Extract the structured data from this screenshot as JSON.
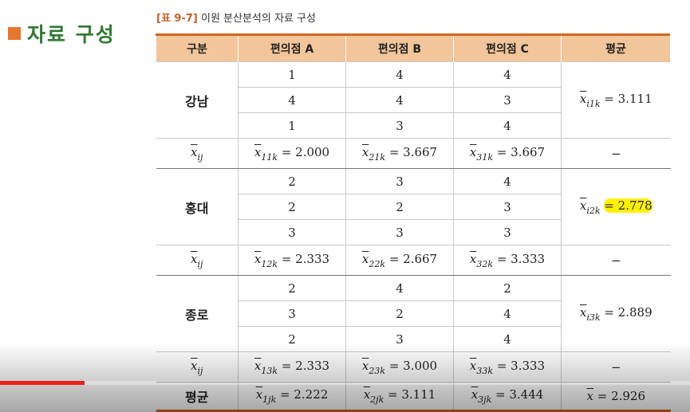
{
  "slide": {
    "title": "자료 구성"
  },
  "caption": {
    "tag": "[표 9-7]",
    "text": "이원 분산분석의 자료 구성"
  },
  "table": {
    "headers": [
      "구분",
      "편의점 A",
      "편의점 B",
      "편의점 C",
      "평균"
    ],
    "groups": [
      {
        "name": "강남",
        "rows": [
          [
            "1",
            "4",
            "4"
          ],
          [
            "4",
            "4",
            "3"
          ],
          [
            "1",
            "3",
            "4"
          ]
        ],
        "row_mean": {
          "sym": "x",
          "sub": "i1k",
          "val": "= 3.111"
        },
        "col_means": [
          {
            "sym": "x",
            "sub": "11k",
            "val": "= 2.000"
          },
          {
            "sym": "x",
            "sub": "21k",
            "val": "= 3.667"
          },
          {
            "sym": "x",
            "sub": "31k",
            "val": "= 3.667"
          }
        ]
      },
      {
        "name": "홍대",
        "rows": [
          [
            "2",
            "3",
            "4"
          ],
          [
            "2",
            "2",
            "3"
          ],
          [
            "3",
            "3",
            "3"
          ]
        ],
        "row_mean": {
          "sym": "x",
          "sub": "i2k",
          "val": "= 2.778"
        },
        "col_means": [
          {
            "sym": "x",
            "sub": "12k",
            "val": "= 2.333"
          },
          {
            "sym": "x",
            "sub": "22k",
            "val": "= 2.667"
          },
          {
            "sym": "x",
            "sub": "32k",
            "val": "= 3.333"
          }
        ]
      },
      {
        "name": "종로",
        "rows": [
          [
            "2",
            "4",
            "2"
          ],
          [
            "3",
            "2",
            "4"
          ],
          [
            "2",
            "3",
            "4"
          ]
        ],
        "row_mean": {
          "sym": "x",
          "sub": "i3k",
          "val": "= 2.889"
        },
        "col_means": [
          {
            "sym": "x",
            "sub": "13k",
            "val": "= 2.333"
          },
          {
            "sym": "x",
            "sub": "23k",
            "val": "= 3.000"
          },
          {
            "sym": "x",
            "sub": "33k",
            "val": "= 3.333"
          }
        ]
      }
    ],
    "mean_label": {
      "sym": "x",
      "sub": "ij"
    },
    "dash": "−",
    "final": {
      "label": "평균",
      "cols": [
        {
          "sym": "x",
          "sub": "1jk",
          "val": "= 2.222"
        },
        {
          "sym": "x",
          "sub": "2jk",
          "val": "= 3.111"
        },
        {
          "sym": "x",
          "sub": "3jk",
          "val": "= 3.444"
        }
      ],
      "grand": {
        "sym": "x",
        "val": "= 2.926"
      }
    }
  },
  "player": {
    "progress": 0.122,
    "accent": "#e62117"
  }
}
